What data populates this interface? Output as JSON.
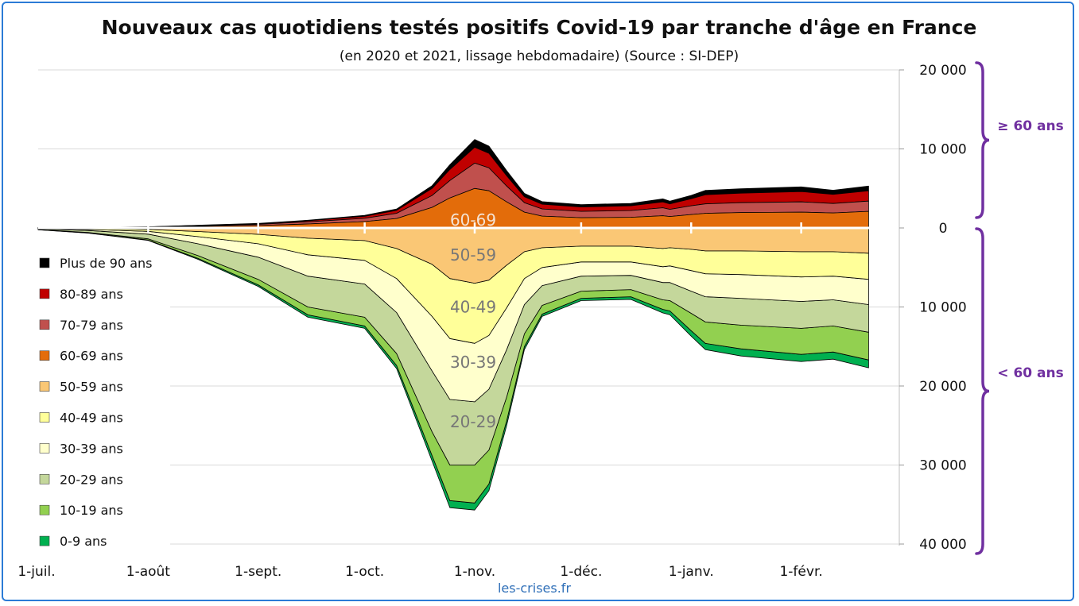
{
  "title": "Nouveaux cas quotidiens testés positifs Covid-19 par tranche d'âge en France",
  "subtitle": "(en 2020 et 2021, lissage hebdomadaire) (Source : SI-DEP)",
  "source": "les-crises.fr",
  "brace_labels": {
    "upper": "≥ 60 ans",
    "lower": "< 60 ans"
  },
  "colors": {
    "frame": "#2b7bd6",
    "brace": "#7030a0",
    "source": "#2f6fb8"
  },
  "chart_data": {
    "type": "area",
    "subtype": "stacked mirrored (ages ≥ 60 above zero, ages < 60 below zero)",
    "x": [
      "1-juil.",
      "15-juil.",
      "1-août",
      "15-août",
      "1-sept.",
      "15-sept.",
      "1-oct.",
      "10-oct.",
      "20-oct.",
      "25-oct.",
      "1-nov.",
      "5-nov.",
      "10-nov.",
      "15-nov.",
      "20-nov.",
      "1-déc.",
      "15-déc.",
      "24-déc.",
      "26-déc.",
      "1-janv.",
      "5-janv.",
      "15-janv.",
      "1-févr.",
      "10-févr.",
      "20-févr."
    ],
    "x_tick_labels": [
      "1-juil.",
      "1-août",
      "1-sept.",
      "1-oct.",
      "1-nov.",
      "1-déc.",
      "1-janv.",
      "1-févr."
    ],
    "y_tick_labels": [
      "20 000",
      "10 000",
      "0",
      "10 000",
      "20 000",
      "30 000",
      "40 000"
    ],
    "y_ticks": [
      20000,
      10000,
      0,
      -10000,
      -20000,
      -30000,
      -40000
    ],
    "ylim": [
      -40000,
      20000
    ],
    "grid": true,
    "legend_position": "left",
    "series": [
      {
        "name": "Plus de 90 ans",
        "sign": 1,
        "color": "#000000",
        "values": [
          0,
          5,
          10,
          25,
          40,
          70,
          120,
          160,
          350,
          600,
          1000,
          900,
          650,
          420,
          330,
          300,
          310,
          380,
          350,
          420,
          550,
          550,
          600,
          520,
          600
        ]
      },
      {
        "name": "80-89 ans",
        "sign": 1,
        "color": "#c00000",
        "values": [
          5,
          10,
          25,
          50,
          80,
          140,
          250,
          380,
          900,
          1400,
          2000,
          1850,
          1300,
          750,
          600,
          550,
          600,
          750,
          700,
          900,
          1150,
          1200,
          1300,
          1150,
          1300
        ]
      },
      {
        "name": "70-79 ans",
        "sign": 1,
        "color": "#c0504d",
        "values": [
          10,
          20,
          40,
          90,
          150,
          260,
          420,
          650,
          1500,
          2200,
          3200,
          2900,
          2000,
          1200,
          900,
          800,
          850,
          1000,
          900,
          1100,
          1200,
          1250,
          1300,
          1200,
          1300
        ]
      },
      {
        "name": "60-69 ans",
        "sign": 1,
        "color": "#e36c0a",
        "values": [
          20,
          40,
          80,
          180,
          300,
          500,
          800,
          1200,
          2600,
          3800,
          5000,
          4700,
          3300,
          2000,
          1500,
          1300,
          1350,
          1550,
          1450,
          1700,
          1850,
          1950,
          2000,
          1900,
          2100
        ]
      },
      {
        "name": "50-59 ans",
        "sign": -1,
        "color": "#fac775",
        "values": [
          30,
          80,
          180,
          450,
          800,
          1300,
          1600,
          2600,
          4600,
          6400,
          7000,
          6600,
          4700,
          3000,
          2500,
          2300,
          2300,
          2600,
          2500,
          2700,
          2900,
          2900,
          3000,
          3000,
          3200
        ]
      },
      {
        "name": "40-49 ans",
        "sign": -1,
        "color": "#ffff99",
        "values": [
          40,
          100,
          250,
          650,
          1200,
          2100,
          2500,
          3800,
          6600,
          7600,
          7600,
          7000,
          5400,
          3400,
          2500,
          2000,
          2000,
          2300,
          2300,
          2700,
          2900,
          3000,
          3200,
          3100,
          3300
        ]
      },
      {
        "name": "30-39 ans",
        "sign": -1,
        "color": "#ffffcc",
        "values": [
          50,
          140,
          350,
          900,
          1700,
          2700,
          3000,
          4300,
          6900,
          7700,
          7400,
          6800,
          5300,
          3300,
          2300,
          1800,
          1700,
          2000,
          2100,
          2600,
          2900,
          3000,
          3100,
          3000,
          3200
        ]
      },
      {
        "name": "20-29 ans",
        "sign": -1,
        "color": "#c4d79b",
        "values": [
          80,
          250,
          600,
          1500,
          2800,
          3900,
          4200,
          5200,
          7700,
          8300,
          8000,
          7700,
          6000,
          3700,
          2500,
          1900,
          1800,
          2200,
          2300,
          2800,
          3200,
          3400,
          3400,
          3300,
          3500
        ]
      },
      {
        "name": "10-19 ans",
        "sign": -1,
        "color": "#92d050",
        "values": [
          20,
          60,
          150,
          350,
          700,
          1000,
          1100,
          1500,
          3000,
          4500,
          4800,
          4300,
          3000,
          1600,
          1100,
          900,
          900,
          1200,
          1300,
          2200,
          2700,
          3000,
          3300,
          3300,
          3500
        ]
      },
      {
        "name": "0-9 ans",
        "sign": -1,
        "color": "#00b050",
        "values": [
          10,
          20,
          50,
          120,
          200,
          300,
          300,
          400,
          700,
          900,
          900,
          850,
          600,
          400,
          300,
          300,
          350,
          450,
          500,
          700,
          800,
          900,
          900,
          900,
          1000
        ]
      }
    ],
    "band_labels": [
      {
        "text": "60-69",
        "x": "1-nov.",
        "y": 1000,
        "light": true
      },
      {
        "text": "50-59",
        "x": "1-nov.",
        "y": -3400,
        "light": false
      },
      {
        "text": "40-49",
        "x": "1-nov.",
        "y": -10000,
        "light": false
      },
      {
        "text": "30-39",
        "x": "1-nov.",
        "y": -17000,
        "light": false
      },
      {
        "text": "20-29",
        "x": "1-nov.",
        "y": -24500,
        "light": false
      }
    ]
  }
}
